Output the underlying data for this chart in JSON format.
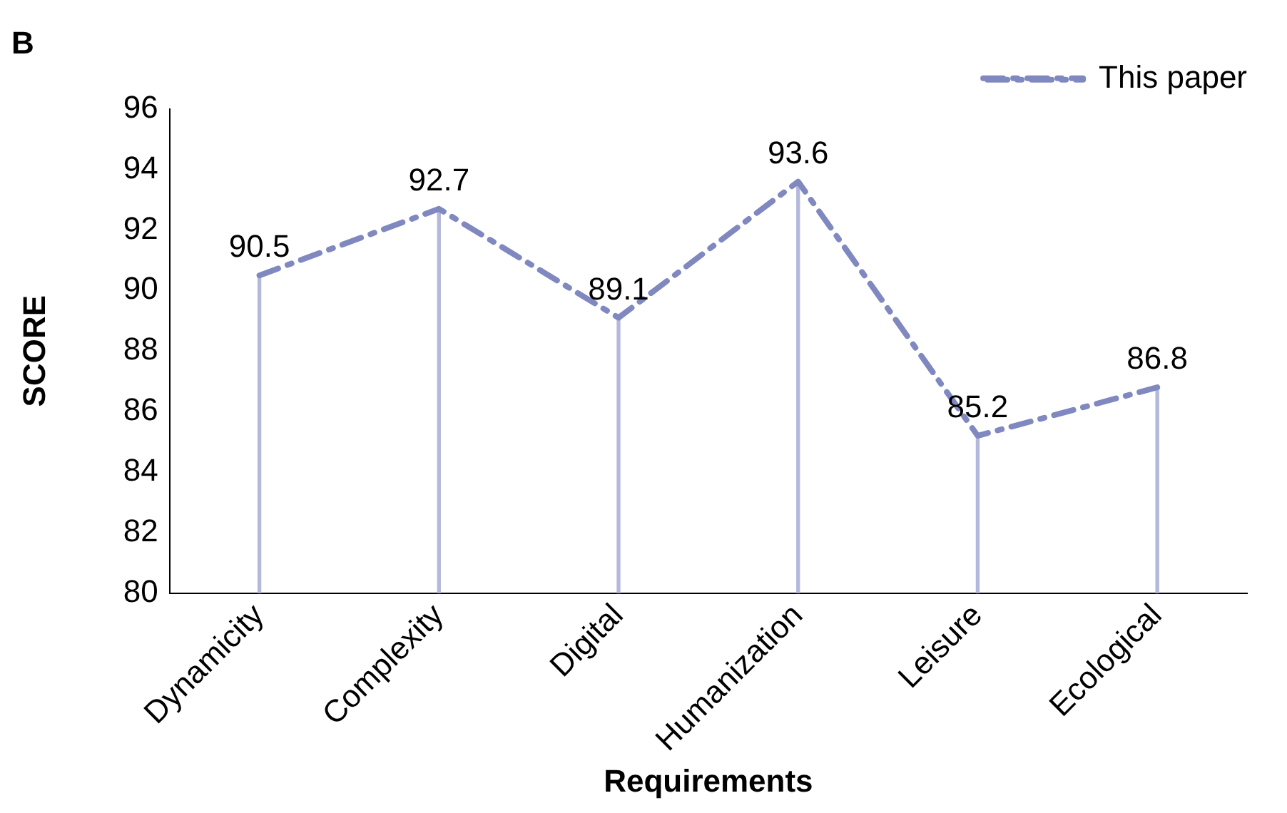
{
  "chart_data": {
    "type": "line",
    "title": "B",
    "xlabel": "Requirements",
    "ylabel": "SCORE",
    "categories": [
      "Dynamicity",
      "Complexity",
      "Digital",
      "Humanization",
      "Leisure",
      "Ecological"
    ],
    "series": [
      {
        "name": "This paper",
        "color": "#8088c0",
        "values": [
          90.5,
          92.7,
          89.1,
          93.6,
          85.2,
          86.8
        ],
        "value_labels": [
          "90.5",
          "92.7",
          "89.1",
          "93.6",
          "85.2",
          "86.8"
        ]
      },
      {
        "type": "bar",
        "color": "#b4b8dc",
        "values": [
          90.5,
          92.7,
          89.1,
          93.6,
          85.2,
          86.8
        ]
      }
    ],
    "ylim": [
      80,
      96
    ],
    "yticks": [
      80,
      82,
      84,
      86,
      88,
      90,
      92,
      94,
      96
    ],
    "legend": "top right",
    "grid": false,
    "marker": "none",
    "line_style": "dashed"
  }
}
